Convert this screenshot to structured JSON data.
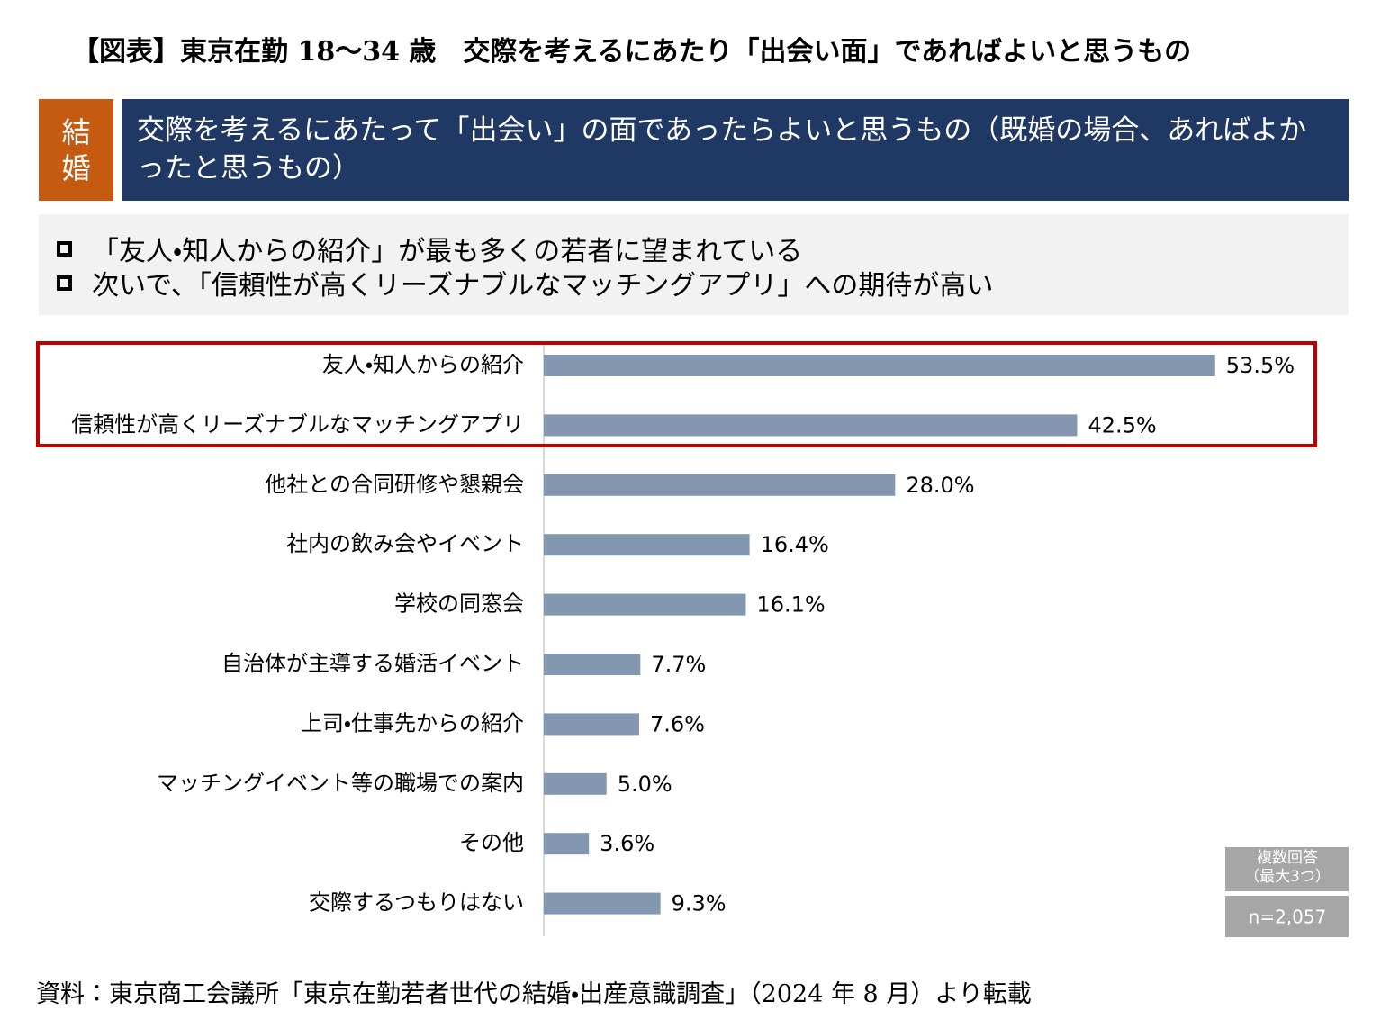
{
  "header": {
    "title": "【図表】東京在勤 18～34 歳　交際を考えるにあたり「出会い面」であればよいと思うもの"
  },
  "banner": {
    "tag": "結婚",
    "text": "交際を考えるにあたって「出会い」の面であったらよいと思うもの（既婚の場合、あればよかったと思うもの）"
  },
  "bullets": [
    "「友人・知人からの紹介」が最も多くの若者に望まれている",
    "次いで、「信頼性が高くリーズナブルなマッチングアプリ」への期待が高い"
  ],
  "chart_data": {
    "type": "hbar",
    "categories": [
      "友人・知人からの紹介",
      "信頼性が高くリーズナブルなマッチングアプリ",
      "他社との合同研修や懇親会",
      "社内の飲み会やイベント",
      "学校の同窓会",
      "自治体が主導する婚活イベント",
      "上司・仕事先からの紹介",
      "マッチングイベント等の職場での案内",
      "その他",
      "交際するつもりはない"
    ],
    "values": [
      53.5,
      42.5,
      28.0,
      16.4,
      16.1,
      7.7,
      7.6,
      5.0,
      3.6,
      9.3
    ],
    "value_labels": [
      "53.5%",
      "42.5%",
      "28.0%",
      "16.4%",
      "16.1%",
      "7.7%",
      "7.6%",
      "5.0%",
      "3.6%",
      "9.3%"
    ],
    "color": "#8497b0",
    "notes": [
      "複数回答",
      "（最大3つ）"
    ],
    "sample": "n=2,057"
  },
  "source": "資料：東京商工会議所「東京在勤若者世代の結婚・出産意識調査」（2024 年 8 月）より転載"
}
